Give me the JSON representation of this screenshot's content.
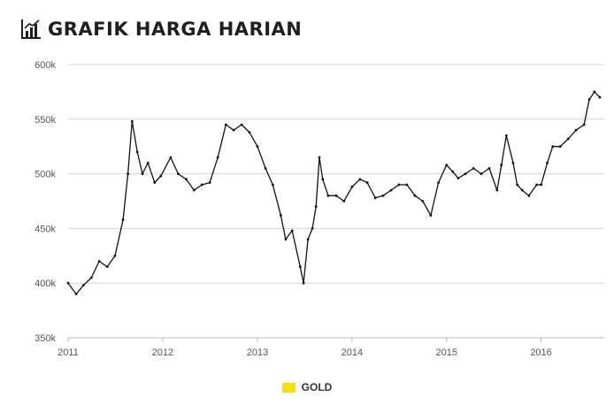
{
  "header": {
    "title": "GRAFIK HARGA HARIAN",
    "icon": "bar-chart-icon"
  },
  "colors": {
    "series": "#111111",
    "grid": "#d4d4d4",
    "legend_swatch": "#f5e100",
    "axis_text": "#555555"
  },
  "chart_data": {
    "type": "line",
    "title": "GRAFIK HARGA HARIAN",
    "xlabel": "",
    "ylabel": "",
    "ylim": [
      350000,
      600000
    ],
    "xlim": [
      "2011-01-01",
      "2016-09-01"
    ],
    "yticks": [
      350000,
      400000,
      450000,
      500000,
      550000,
      600000
    ],
    "ytick_labels": [
      "350k",
      "400k",
      "450k",
      "500k",
      "550k",
      "600k"
    ],
    "xticks": [
      "2011",
      "2012",
      "2013",
      "2014",
      "2015",
      "2016"
    ],
    "grid": true,
    "legend_position": "bottom-center",
    "series": [
      {
        "name": "GOLD",
        "x": [
          "2011-01-01",
          "2011-02-01",
          "2011-03-01",
          "2011-04-01",
          "2011-05-01",
          "2011-06-01",
          "2011-07-01",
          "2011-08-01",
          "2011-08-20",
          "2011-09-05",
          "2011-09-25",
          "2011-10-15",
          "2011-11-05",
          "2011-12-01",
          "2011-12-25",
          "2012-02-01",
          "2012-03-01",
          "2012-04-01",
          "2012-05-01",
          "2012-06-01",
          "2012-07-01",
          "2012-08-01",
          "2012-09-01",
          "2012-10-01",
          "2012-11-01",
          "2012-12-01",
          "2013-01-01",
          "2013-02-01",
          "2013-03-01",
          "2013-04-01",
          "2013-04-20",
          "2013-05-15",
          "2013-06-15",
          "2013-06-28",
          "2013-07-15",
          "2013-08-01",
          "2013-08-15",
          "2013-08-28",
          "2013-09-10",
          "2013-10-01",
          "2013-11-01",
          "2013-12-01",
          "2014-01-01",
          "2014-02-01",
          "2014-03-01",
          "2014-04-01",
          "2014-05-01",
          "2014-06-01",
          "2014-07-01",
          "2014-08-01",
          "2014-09-01",
          "2014-10-01",
          "2014-11-01",
          "2014-12-01",
          "2015-01-01",
          "2015-01-25",
          "2015-02-15",
          "2015-03-15",
          "2015-04-15",
          "2015-05-15",
          "2015-06-15",
          "2015-07-15",
          "2015-08-01",
          "2015-08-20",
          "2015-09-15",
          "2015-10-01",
          "2015-10-20",
          "2015-11-15",
          "2015-12-15",
          "2016-01-01",
          "2016-01-25",
          "2016-02-15",
          "2016-03-15",
          "2016-04-15",
          "2016-05-15",
          "2016-06-15",
          "2016-07-05",
          "2016-07-25",
          "2016-08-15"
        ],
        "values": [
          400000,
          390000,
          398000,
          405000,
          420000,
          415000,
          425000,
          458000,
          500000,
          548000,
          520000,
          500000,
          510000,
          492000,
          498000,
          515000,
          500000,
          495000,
          485000,
          490000,
          492000,
          515000,
          545000,
          540000,
          545000,
          538000,
          525000,
          505000,
          490000,
          462000,
          440000,
          448000,
          415000,
          400000,
          440000,
          450000,
          470000,
          515000,
          495000,
          480000,
          480000,
          475000,
          488000,
          495000,
          492000,
          478000,
          480000,
          485000,
          490000,
          490000,
          480000,
          475000,
          462000,
          492000,
          508000,
          502000,
          496000,
          500000,
          505000,
          500000,
          505000,
          485000,
          508000,
          535000,
          510000,
          490000,
          485000,
          480000,
          490000,
          490000,
          510000,
          525000,
          525000,
          532000,
          540000,
          545000,
          568000,
          575000,
          570000
        ]
      }
    ]
  }
}
